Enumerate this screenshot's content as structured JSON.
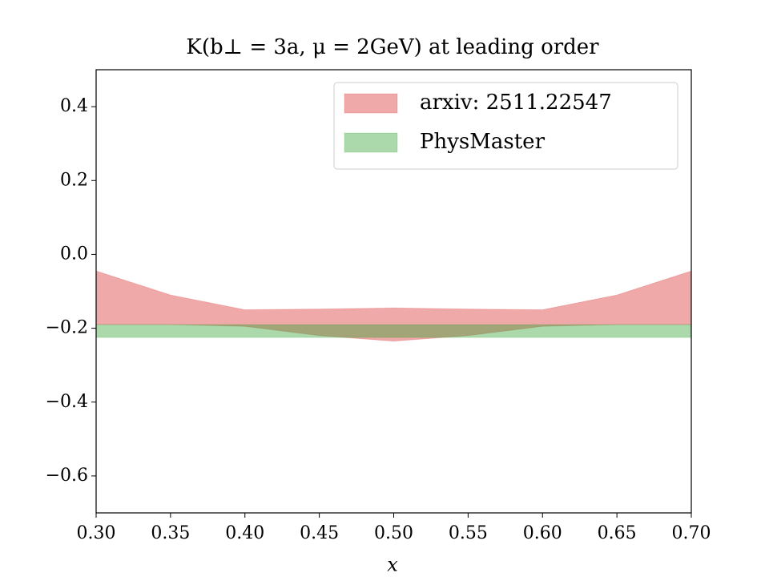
{
  "chart_data": {
    "type": "band",
    "title": "K(b⊥ = 3a, μ = 2GeV) at leading order",
    "xlabel": "x",
    "x": [
      0.3,
      0.35,
      0.4,
      0.45,
      0.5,
      0.55,
      0.6,
      0.65,
      0.7
    ],
    "series": [
      {
        "name": "arxiv: 2511.22547",
        "color": "#d62728",
        "upper": [
          -0.045,
          -0.11,
          -0.15,
          -0.148,
          -0.145,
          -0.148,
          -0.15,
          -0.11,
          -0.045
        ],
        "lower": [
          -0.19,
          -0.19,
          -0.195,
          -0.22,
          -0.235,
          -0.22,
          -0.195,
          -0.19,
          -0.19
        ]
      },
      {
        "name": "PhysMaster",
        "color": "#2ca02c",
        "upper": [
          -0.19,
          -0.19,
          -0.19,
          -0.19,
          -0.19,
          -0.19,
          -0.19,
          -0.19,
          -0.19
        ],
        "lower": [
          -0.225,
          -0.225,
          -0.225,
          -0.225,
          -0.225,
          -0.225,
          -0.225,
          -0.225,
          -0.225
        ]
      }
    ],
    "opacity": 0.4,
    "xlim": [
      0.3,
      0.7
    ],
    "xticks": [
      {
        "value": 0.3,
        "label": "0.30"
      },
      {
        "value": 0.35,
        "label": "0.35"
      },
      {
        "value": 0.4,
        "label": "0.40"
      },
      {
        "value": 0.45,
        "label": "0.45"
      },
      {
        "value": 0.5,
        "label": "0.50"
      },
      {
        "value": 0.55,
        "label": "0.55"
      },
      {
        "value": 0.6,
        "label": "0.60"
      },
      {
        "value": 0.65,
        "label": "0.65"
      },
      {
        "value": 0.7,
        "label": "0.70"
      }
    ],
    "ylim": [
      -0.7,
      0.5
    ],
    "yticks": [
      {
        "value": -0.6,
        "label": "−0.6"
      },
      {
        "value": -0.4,
        "label": "−0.4"
      },
      {
        "value": -0.2,
        "label": "−0.2"
      },
      {
        "value": 0.0,
        "label": "0.0"
      },
      {
        "value": 0.2,
        "label": "0.2"
      },
      {
        "value": 0.4,
        "label": "0.4"
      }
    ],
    "legend": "upper right"
  }
}
